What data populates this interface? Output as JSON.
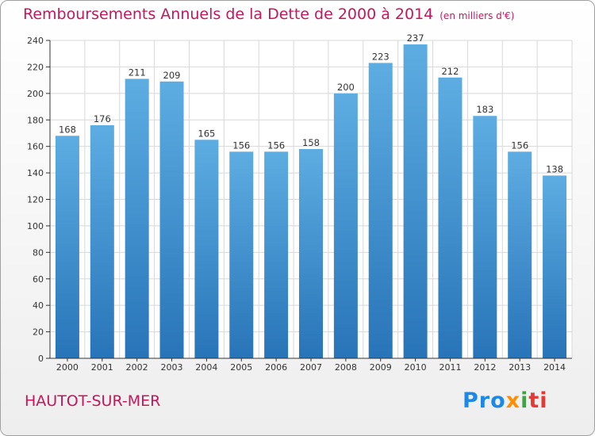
{
  "header": {
    "title": "Remboursements Annuels de la Dette de 2000 à 2014",
    "unit": "(en milliers d'€)"
  },
  "footer": {
    "city": "HAUTOT-SUR-MER",
    "logo_parts": [
      "Pro",
      "x",
      "i",
      "ti"
    ]
  },
  "colors": {
    "title": "#c2185b",
    "bar_top": "#5dade2",
    "bar_bottom": "#2874b8",
    "grid": "#d8d8d8"
  },
  "chart_data": {
    "type": "bar",
    "title": "Remboursements Annuels de la Dette de 2000 à 2014",
    "subtitle": "(en milliers d'€)",
    "xlabel": "",
    "ylabel": "",
    "categories": [
      "2000",
      "2001",
      "2002",
      "2003",
      "2004",
      "2005",
      "2006",
      "2007",
      "2008",
      "2009",
      "2010",
      "2011",
      "2012",
      "2013",
      "2014"
    ],
    "values": [
      168,
      176,
      211,
      209,
      165,
      156,
      156,
      158,
      200,
      223,
      237,
      212,
      183,
      156,
      138
    ],
    "ylim": [
      0,
      240
    ],
    "yticks": [
      0,
      20,
      40,
      60,
      80,
      100,
      120,
      140,
      160,
      180,
      200,
      220,
      240
    ],
    "grid": true,
    "legend": "none"
  }
}
